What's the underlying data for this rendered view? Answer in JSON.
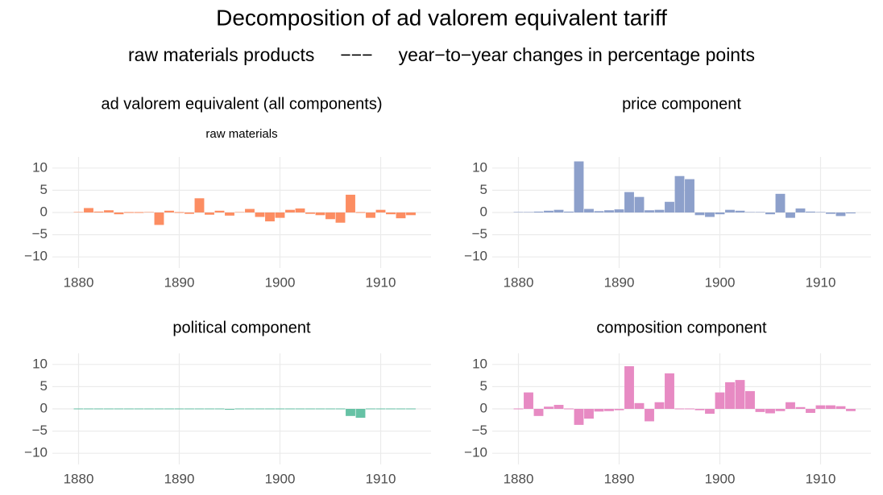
{
  "title": "Decomposition of ad valorem equivalent tariff",
  "subtitle": "raw materials products     −−−     year−to−year changes in percentage points",
  "chart_data": [
    {
      "type": "bar",
      "title": "ad valorem equivalent (all components)",
      "subtitle": "raw materials",
      "x": [
        1880,
        1881,
        1882,
        1883,
        1884,
        1885,
        1886,
        1887,
        1888,
        1889,
        1890,
        1891,
        1892,
        1893,
        1894,
        1895,
        1896,
        1897,
        1898,
        1899,
        1900,
        1901,
        1902,
        1903,
        1904,
        1905,
        1906,
        1907,
        1908,
        1909,
        1910,
        1911,
        1912,
        1913
      ],
      "values": [
        0.1,
        1.0,
        0.2,
        0.5,
        -0.4,
        0,
        0,
        0.1,
        -2.8,
        0.4,
        0,
        -0.3,
        3.2,
        -0.5,
        0.4,
        -0.7,
        0.1,
        0.8,
        -1.0,
        -2.0,
        -1.2,
        0.6,
        0.9,
        -0.3,
        -0.6,
        -1.5,
        -2.3,
        4.0,
        0,
        -1.2,
        0.6,
        -0.4,
        -1.3,
        -0.6
      ],
      "color": "#fc8d62",
      "xlim": [
        1877.4,
        1915.0
      ],
      "ylim": [
        -12.5,
        12.5
      ],
      "xticks": [
        1880,
        1890,
        1900,
        1910
      ],
      "yticks": [
        {
          "value": -10,
          "label": "−10"
        },
        {
          "value": -5,
          "label": "−5"
        },
        0,
        5,
        10
      ],
      "grid": true
    },
    {
      "type": "bar",
      "title": "price component",
      "x": [
        1880,
        1881,
        1882,
        1883,
        1884,
        1885,
        1886,
        1887,
        1888,
        1889,
        1890,
        1891,
        1892,
        1893,
        1894,
        1895,
        1896,
        1897,
        1898,
        1899,
        1900,
        1901,
        1902,
        1903,
        1904,
        1905,
        1906,
        1907,
        1908,
        1909,
        1910,
        1911,
        1912,
        1913
      ],
      "values": [
        0.1,
        0.1,
        0.2,
        0.4,
        0.6,
        0.2,
        11.5,
        0.8,
        0.3,
        0.5,
        0.7,
        4.6,
        3.5,
        0.5,
        0.6,
        2.4,
        8.2,
        7.5,
        -0.6,
        -1.0,
        -0.4,
        0.6,
        0.4,
        0.1,
        0.1,
        -0.4,
        4.2,
        -1.2,
        0.9,
        0.2,
        0.1,
        -0.3,
        -0.8,
        -0.2
      ],
      "color": "#8da0cb",
      "xlim": [
        1877.4,
        1915.0
      ],
      "ylim": [
        -12.5,
        12.5
      ],
      "xticks": [
        1880,
        1890,
        1900,
        1910
      ],
      "yticks": [
        {
          "value": -10,
          "label": "−10"
        },
        {
          "value": -5,
          "label": "−5"
        },
        0,
        5,
        10
      ],
      "grid": true
    },
    {
      "type": "bar",
      "title": "political component",
      "x": [
        1880,
        1881,
        1882,
        1883,
        1884,
        1885,
        1886,
        1887,
        1888,
        1889,
        1890,
        1891,
        1892,
        1893,
        1894,
        1895,
        1896,
        1897,
        1898,
        1899,
        1900,
        1901,
        1902,
        1903,
        1904,
        1905,
        1906,
        1907,
        1908,
        1909,
        1910,
        1911,
        1912,
        1913
      ],
      "values": [
        0,
        0,
        0,
        0,
        0,
        0,
        0,
        0,
        0,
        0,
        0,
        0,
        0,
        0,
        0,
        -0.2,
        0,
        0,
        0,
        0,
        0,
        0,
        0,
        0,
        0,
        0,
        0,
        -1.6,
        -2.0,
        0,
        0,
        0,
        0,
        0
      ],
      "color": "#66c2a5",
      "xlim": [
        1877.4,
        1915.0
      ],
      "ylim": [
        -12.5,
        12.5
      ],
      "xticks": [
        1880,
        1890,
        1900,
        1910
      ],
      "yticks": [
        {
          "value": -10,
          "label": "−10"
        },
        {
          "value": -5,
          "label": "−5"
        },
        0,
        5,
        10
      ],
      "grid": true
    },
    {
      "type": "bar",
      "title": "composition component",
      "x": [
        1880,
        1881,
        1882,
        1883,
        1884,
        1885,
        1886,
        1887,
        1888,
        1889,
        1890,
        1891,
        1892,
        1893,
        1894,
        1895,
        1896,
        1897,
        1898,
        1899,
        1900,
        1901,
        1902,
        1903,
        1904,
        1905,
        1906,
        1907,
        1908,
        1909,
        1910,
        1911,
        1912,
        1913
      ],
      "values": [
        0,
        3.7,
        -1.6,
        0.5,
        0.9,
        0,
        -3.6,
        -2.2,
        -0.6,
        -0.5,
        -0.3,
        9.6,
        1.3,
        -2.8,
        1.5,
        8.0,
        0,
        0,
        -0.3,
        -1.1,
        3.7,
        6.0,
        6.5,
        4.0,
        -0.7,
        -1.0,
        -0.5,
        1.5,
        0.4,
        -0.9,
        0.8,
        0.8,
        0.6,
        -0.5
      ],
      "color": "#e78ac3",
      "xlim": [
        1877.4,
        1915.0
      ],
      "ylim": [
        -12.5,
        12.5
      ],
      "xticks": [
        1880,
        1890,
        1900,
        1910
      ],
      "yticks": [
        {
          "value": -10,
          "label": "−10"
        },
        {
          "value": -5,
          "label": "−5"
        },
        0,
        5,
        10
      ],
      "grid": true
    }
  ]
}
